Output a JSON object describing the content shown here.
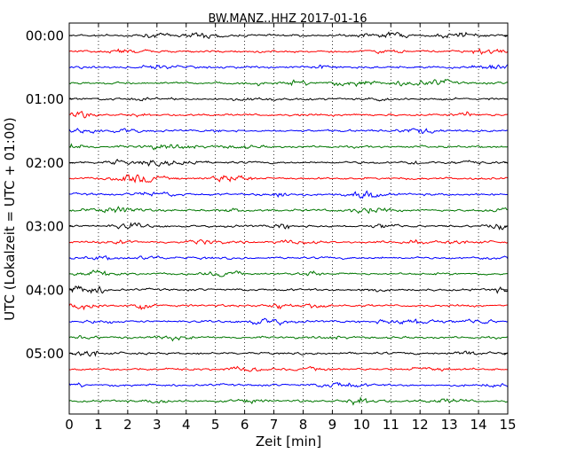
{
  "chart_data": {
    "type": "line",
    "title": "BW.MANZ..HHZ 2017-01-16",
    "xlabel": "Zeit  [min]",
    "ylabel": "UTC (Lokalzeit = UTC + 01:00)",
    "xlim": [
      0,
      15
    ],
    "x_ticks": [
      "0",
      "1",
      "2",
      "3",
      "4",
      "5",
      "6",
      "7",
      "8",
      "9",
      "10",
      "11",
      "12",
      "13",
      "14",
      "15"
    ],
    "y_tick_labels": [
      "00:00",
      "01:00",
      "02:00",
      "03:00",
      "04:00",
      "05:00"
    ],
    "grid": "vertical dotted",
    "trace_colors": [
      "#000000",
      "#ff0000",
      "#0000ff",
      "#007700"
    ],
    "trace_count": 24,
    "minutes_per_trace": 15,
    "traces": [
      {
        "start": "00:00",
        "color": "#000000"
      },
      {
        "start": "00:15",
        "color": "#ff0000"
      },
      {
        "start": "00:30",
        "color": "#0000ff"
      },
      {
        "start": "00:45",
        "color": "#007700"
      },
      {
        "start": "01:00",
        "color": "#000000"
      },
      {
        "start": "01:15",
        "color": "#ff0000"
      },
      {
        "start": "01:30",
        "color": "#0000ff"
      },
      {
        "start": "01:45",
        "color": "#007700"
      },
      {
        "start": "02:00",
        "color": "#000000"
      },
      {
        "start": "02:15",
        "color": "#ff0000"
      },
      {
        "start": "02:30",
        "color": "#0000ff"
      },
      {
        "start": "02:45",
        "color": "#007700"
      },
      {
        "start": "03:00",
        "color": "#000000"
      },
      {
        "start": "03:15",
        "color": "#ff0000"
      },
      {
        "start": "03:30",
        "color": "#0000ff"
      },
      {
        "start": "03:45",
        "color": "#007700"
      },
      {
        "start": "04:00",
        "color": "#000000"
      },
      {
        "start": "04:15",
        "color": "#ff0000"
      },
      {
        "start": "04:30",
        "color": "#0000ff"
      },
      {
        "start": "04:45",
        "color": "#007700"
      },
      {
        "start": "05:00",
        "color": "#000000"
      },
      {
        "start": "05:15",
        "color": "#ff0000"
      },
      {
        "start": "05:30",
        "color": "#0000ff"
      },
      {
        "start": "05:45",
        "color": "#007700"
      }
    ]
  }
}
